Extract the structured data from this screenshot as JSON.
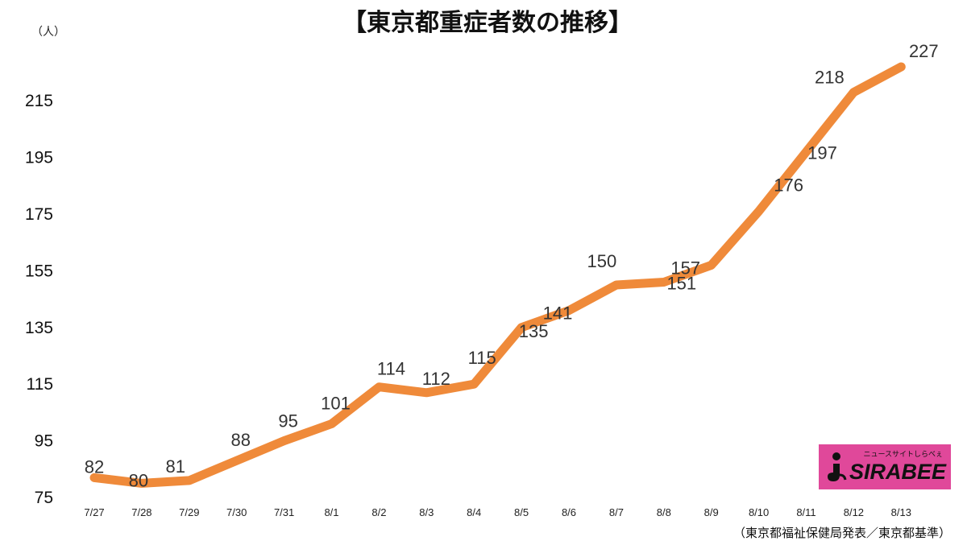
{
  "chart_data": {
    "type": "line",
    "title": "【東京都重症者数の推移】",
    "unit_label": "（人）",
    "source_note": "（東京都福祉保健局発表／東京都基準）",
    "categories": [
      "7/27",
      "7/28",
      "7/29",
      "7/30",
      "7/31",
      "8/1",
      "8/2",
      "8/3",
      "8/4",
      "8/5",
      "8/6",
      "8/7",
      "8/8",
      "8/9",
      "8/10",
      "8/11",
      "8/12",
      "8/13"
    ],
    "series": [
      {
        "values": [
          82,
          80,
          81,
          88,
          95,
          101,
          114,
          112,
          115,
          135,
          141,
          150,
          151,
          157,
          176,
          197,
          218,
          227
        ],
        "color": "#ef8a3a"
      }
    ],
    "y_ticks": [
      75,
      95,
      115,
      135,
      155,
      175,
      195,
      215
    ],
    "ylim": [
      75,
      230
    ],
    "grid": false,
    "legend": "none"
  },
  "logo": {
    "tagline": "ニュースサイトしらべぇ",
    "wordmark": "SIRABEE",
    "background": "#e0489a"
  }
}
